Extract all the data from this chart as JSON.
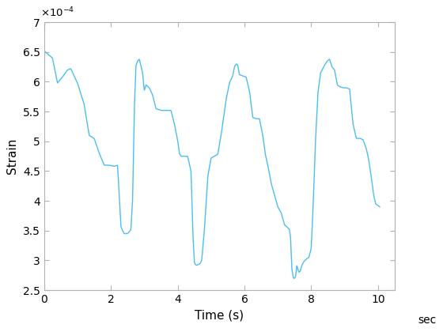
{
  "xlabel": "Time (s)",
  "ylabel": "Strain",
  "xlim": [
    0,
    10.5
  ],
  "ylim": [
    0.00025,
    0.0007
  ],
  "xticks": [
    0,
    2,
    4,
    6,
    8,
    10
  ],
  "yticks": [
    0.00025,
    0.0003,
    0.00035,
    0.0004,
    0.00045,
    0.0005,
    0.00055,
    0.0006,
    0.00065,
    0.0007
  ],
  "ytick_labels": [
    "2.5",
    "3",
    "3.5",
    "4",
    "4.5",
    "5",
    "5.5",
    "6",
    "6.5",
    "7"
  ],
  "xtick_labels": [
    "0",
    "2",
    "4",
    "6",
    "8",
    "10"
  ],
  "line_color": "#4DBEEE",
  "line_width": 1.0,
  "bg_color": "#FFFFFF",
  "sec_label": "sec",
  "keypoints": [
    [
      0.0,
      6.52
    ],
    [
      0.25,
      6.4
    ],
    [
      0.4,
      5.98
    ],
    [
      0.55,
      6.08
    ],
    [
      0.7,
      6.2
    ],
    [
      0.8,
      6.22
    ],
    [
      0.9,
      6.1
    ],
    [
      1.0,
      5.98
    ],
    [
      1.1,
      5.8
    ],
    [
      1.2,
      5.62
    ],
    [
      1.35,
      5.1
    ],
    [
      1.5,
      5.05
    ],
    [
      1.65,
      4.8
    ],
    [
      1.8,
      4.6
    ],
    [
      1.95,
      4.6
    ],
    [
      2.1,
      4.58
    ],
    [
      2.2,
      4.6
    ],
    [
      2.3,
      3.57
    ],
    [
      2.35,
      3.5
    ],
    [
      2.4,
      3.45
    ],
    [
      2.5,
      3.45
    ],
    [
      2.6,
      3.52
    ],
    [
      2.65,
      4.0
    ],
    [
      2.7,
      5.5
    ],
    [
      2.75,
      6.27
    ],
    [
      2.8,
      6.35
    ],
    [
      2.85,
      6.38
    ],
    [
      2.9,
      6.27
    ],
    [
      2.95,
      6.15
    ],
    [
      3.0,
      5.85
    ],
    [
      3.05,
      5.95
    ],
    [
      3.15,
      5.9
    ],
    [
      3.25,
      5.78
    ],
    [
      3.35,
      5.55
    ],
    [
      3.5,
      5.52
    ],
    [
      3.65,
      5.52
    ],
    [
      3.8,
      5.52
    ],
    [
      3.9,
      5.3
    ],
    [
      4.0,
      5.02
    ],
    [
      4.05,
      4.8
    ],
    [
      4.1,
      4.75
    ],
    [
      4.2,
      4.75
    ],
    [
      4.3,
      4.75
    ],
    [
      4.4,
      4.5
    ],
    [
      4.43,
      3.98
    ],
    [
      4.46,
      3.4
    ],
    [
      4.5,
      2.97
    ],
    [
      4.53,
      2.93
    ],
    [
      4.57,
      2.92
    ],
    [
      4.62,
      2.93
    ],
    [
      4.67,
      2.95
    ],
    [
      4.72,
      3.0
    ],
    [
      4.8,
      3.5
    ],
    [
      4.9,
      4.4
    ],
    [
      5.0,
      4.72
    ],
    [
      5.1,
      4.75
    ],
    [
      5.2,
      4.78
    ],
    [
      5.3,
      5.1
    ],
    [
      5.45,
      5.7
    ],
    [
      5.55,
      5.98
    ],
    [
      5.65,
      6.1
    ],
    [
      5.7,
      6.25
    ],
    [
      5.75,
      6.3
    ],
    [
      5.8,
      6.28
    ],
    [
      5.85,
      6.12
    ],
    [
      5.95,
      6.1
    ],
    [
      6.05,
      6.08
    ],
    [
      6.15,
      5.85
    ],
    [
      6.25,
      5.4
    ],
    [
      6.35,
      5.38
    ],
    [
      6.45,
      5.38
    ],
    [
      6.55,
      5.1
    ],
    [
      6.62,
      4.8
    ],
    [
      6.7,
      4.6
    ],
    [
      6.8,
      4.3
    ],
    [
      6.9,
      4.1
    ],
    [
      7.0,
      3.9
    ],
    [
      7.1,
      3.8
    ],
    [
      7.2,
      3.6
    ],
    [
      7.3,
      3.55
    ],
    [
      7.35,
      3.52
    ],
    [
      7.38,
      3.4
    ],
    [
      7.42,
      2.85
    ],
    [
      7.47,
      2.7
    ],
    [
      7.5,
      2.7
    ],
    [
      7.53,
      2.72
    ],
    [
      7.57,
      2.92
    ],
    [
      7.6,
      2.85
    ],
    [
      7.63,
      2.8
    ],
    [
      7.67,
      2.82
    ],
    [
      7.72,
      2.92
    ],
    [
      7.78,
      2.98
    ],
    [
      7.85,
      3.02
    ],
    [
      7.93,
      3.05
    ],
    [
      8.0,
      3.2
    ],
    [
      8.05,
      3.8
    ],
    [
      8.12,
      4.9
    ],
    [
      8.2,
      5.8
    ],
    [
      8.28,
      6.15
    ],
    [
      8.35,
      6.22
    ],
    [
      8.4,
      6.28
    ],
    [
      8.48,
      6.35
    ],
    [
      8.55,
      6.38
    ],
    [
      8.62,
      6.25
    ],
    [
      8.7,
      6.2
    ],
    [
      8.78,
      5.95
    ],
    [
      8.85,
      5.92
    ],
    [
      8.95,
      5.9
    ],
    [
      9.05,
      5.9
    ],
    [
      9.15,
      5.88
    ],
    [
      9.25,
      5.3
    ],
    [
      9.35,
      5.05
    ],
    [
      9.45,
      5.05
    ],
    [
      9.55,
      5.03
    ],
    [
      9.65,
      4.88
    ],
    [
      9.72,
      4.7
    ],
    [
      9.8,
      4.4
    ],
    [
      9.87,
      4.1
    ],
    [
      9.93,
      3.95
    ],
    [
      10.0,
      3.92
    ],
    [
      10.05,
      3.9
    ]
  ]
}
